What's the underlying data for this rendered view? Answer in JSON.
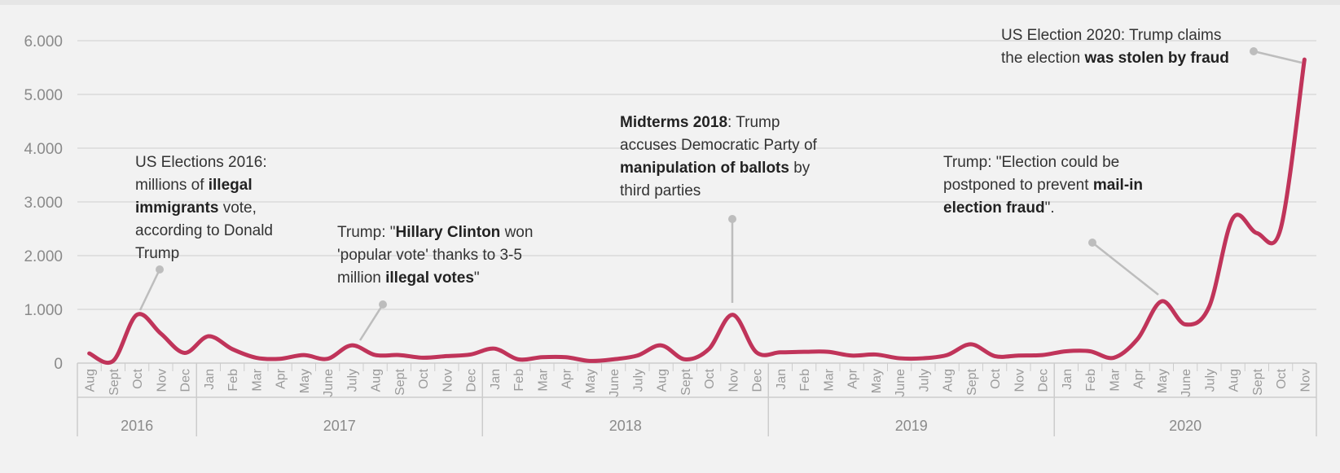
{
  "chart_data": {
    "type": "line",
    "title": "",
    "xlabel": "",
    "ylabel": "",
    "ylim": [
      0,
      6000
    ],
    "y_ticks": [
      "0",
      "1.000",
      "2.000",
      "3.000",
      "4.000",
      "5.000",
      "6.000"
    ],
    "grid": true,
    "line_color": "#c0345a",
    "x": [
      "2016-08",
      "2016-09",
      "2016-10",
      "2016-11",
      "2016-12",
      "2017-01",
      "2017-02",
      "2017-03",
      "2017-04",
      "2017-05",
      "2017-06",
      "2017-07",
      "2017-08",
      "2017-09",
      "2017-10",
      "2017-11",
      "2017-12",
      "2018-01",
      "2018-02",
      "2018-03",
      "2018-04",
      "2018-05",
      "2018-06",
      "2018-07",
      "2018-08",
      "2018-09",
      "2018-10",
      "2018-11",
      "2018-12",
      "2019-01",
      "2019-02",
      "2019-03",
      "2019-04",
      "2019-05",
      "2019-06",
      "2019-07",
      "2019-08",
      "2019-09",
      "2019-10",
      "2019-11",
      "2019-12",
      "2020-01",
      "2020-02",
      "2020-03",
      "2020-04",
      "2020-05",
      "2020-06",
      "2020-07",
      "2020-08",
      "2020-09",
      "2020-10",
      "2020-11"
    ],
    "month_labels": [
      "Aug",
      "Sept",
      "Oct",
      "Nov",
      "Dec",
      "Jan",
      "Feb",
      "Mar",
      "Apr",
      "May",
      "June",
      "July",
      "Aug",
      "Sept",
      "Oct",
      "Nov",
      "Dec",
      "Jan",
      "Feb",
      "Mar",
      "Apr",
      "May",
      "June",
      "July",
      "Aug",
      "Sept",
      "Oct",
      "Nov",
      "Dec",
      "Jan",
      "Feb",
      "Mar",
      "Apr",
      "May",
      "June",
      "July",
      "Aug",
      "Sept",
      "Oct",
      "Nov",
      "Dec",
      "Jan",
      "Feb",
      "Mar",
      "Apr",
      "May",
      "June",
      "July",
      "Aug",
      "Sept",
      "Oct",
      "Nov"
    ],
    "years": [
      {
        "label": "2016",
        "first": 0,
        "count": 5
      },
      {
        "label": "2017",
        "first": 5,
        "count": 12
      },
      {
        "label": "2018",
        "first": 17,
        "count": 12
      },
      {
        "label": "2019",
        "first": 29,
        "count": 12
      },
      {
        "label": "2020",
        "first": 41,
        "count": 11
      }
    ],
    "series": [
      {
        "values": [
          180,
          40,
          900,
          550,
          190,
          500,
          260,
          100,
          80,
          150,
          80,
          330,
          150,
          150,
          100,
          130,
          160,
          270,
          70,
          110,
          110,
          40,
          70,
          140,
          330,
          70,
          260,
          900,
          200,
          200,
          210,
          210,
          140,
          160,
          90,
          90,
          150,
          350,
          130,
          140,
          150,
          220,
          220,
          100,
          450,
          1150,
          720,
          1050,
          2700,
          2420,
          2500,
          5650
        ]
      }
    ],
    "annotations": [
      {
        "id": "us2016",
        "point": 2,
        "parts": [
          {
            "text": "US Elections 2016:"
          },
          {
            "br": true
          },
          {
            "text": "millions of "
          },
          {
            "text": "illegal",
            "bold": true
          },
          {
            "br": true
          },
          {
            "text": "immigrants",
            "bold": true
          },
          {
            "text": " vote,"
          },
          {
            "br": true
          },
          {
            "text": "according to Donald"
          },
          {
            "br": true
          },
          {
            "text": "Trump"
          }
        ]
      },
      {
        "id": "hillary",
        "point": 11,
        "parts": [
          {
            "text": "Trump: \""
          },
          {
            "text": "Hillary Clinton",
            "bold": true
          },
          {
            "text": " won"
          },
          {
            "br": true
          },
          {
            "text": "'popular vote' thanks to 3-5"
          },
          {
            "br": true
          },
          {
            "text": "million "
          },
          {
            "text": "illegal votes",
            "bold": true
          },
          {
            "text": "\""
          }
        ]
      },
      {
        "id": "midterms",
        "point": 27,
        "parts": [
          {
            "text": "Midterms 2018",
            "bold": true
          },
          {
            "text": ": Trump"
          },
          {
            "br": true
          },
          {
            "text": "accuses Democratic Party of"
          },
          {
            "br": true
          },
          {
            "text": "manipulation of ballots",
            "bold": true
          },
          {
            "text": " by"
          },
          {
            "br": true
          },
          {
            "text": "third parties"
          }
        ]
      },
      {
        "id": "postpone",
        "point": 45,
        "parts": [
          {
            "text": "Trump: \"Election could be"
          },
          {
            "br": true
          },
          {
            "text": "postponed to prevent "
          },
          {
            "text": "mail-in",
            "bold": true
          },
          {
            "br": true
          },
          {
            "text": "election fraud",
            "bold": true
          },
          {
            "text": "\"."
          }
        ]
      },
      {
        "id": "us2020",
        "point": 51,
        "parts": [
          {
            "text": "US Election 2020: Trump claims"
          },
          {
            "br": true
          },
          {
            "text": "the election "
          },
          {
            "text": "was stolen by fraud",
            "bold": true
          }
        ]
      }
    ]
  }
}
